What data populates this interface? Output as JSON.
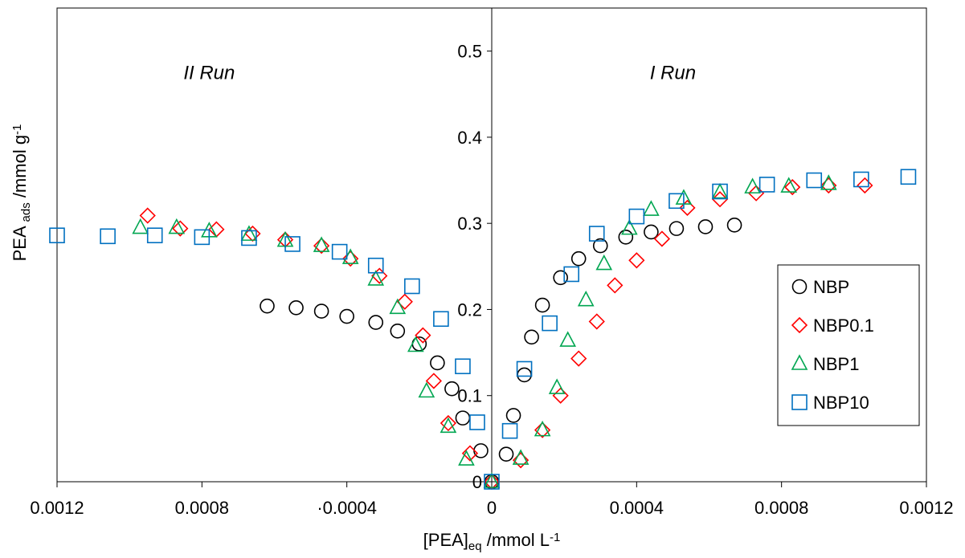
{
  "chart_data": {
    "type": "scatter",
    "xlabel": {
      "main": "[PEA]",
      "sub": "eq",
      "rest": " /mmol L",
      "sup": "-1"
    },
    "ylabel": {
      "main": "PEA ",
      "sub": "ads",
      "rest": " /mmol g",
      "sup": "-1"
    },
    "xlim": [
      -0.0012,
      0.0012
    ],
    "ylim": [
      0,
      0.55
    ],
    "x_ticks": [
      -0.0012,
      -0.0008,
      -0.0004,
      0,
      0.0004,
      0.0008,
      0.0012
    ],
    "x_tick_labels": [
      "0.0012",
      "0.0008",
      "·0.0004",
      "0",
      "0.0004",
      "0.0008",
      "0.0012"
    ],
    "y_ticks": [
      0,
      0.1,
      0.2,
      0.3,
      0.4,
      0.5
    ],
    "y_tick_labels": [
      "0",
      "0.1",
      "0.2",
      "0.3",
      "0.4",
      "0.5"
    ],
    "annotations": [
      {
        "text": "II Run",
        "x": -0.00078,
        "y": 0.475
      },
      {
        "text": "I Run",
        "x": 0.0005,
        "y": 0.475
      }
    ],
    "legend_position": "right",
    "series": [
      {
        "name": "NBP",
        "marker": "circle",
        "color": "#000000",
        "points": [
          [
            -0.00062,
            0.204
          ],
          [
            -0.00054,
            0.202
          ],
          [
            -0.00047,
            0.198
          ],
          [
            -0.0004,
            0.192
          ],
          [
            -0.00032,
            0.185
          ],
          [
            -0.00026,
            0.175
          ],
          [
            -0.0002,
            0.16
          ],
          [
            -0.00015,
            0.138
          ],
          [
            -0.00011,
            0.108
          ],
          [
            -8e-05,
            0.074
          ],
          [
            -3e-05,
            0.036
          ],
          [
            0.0,
            0.0
          ],
          [
            4e-05,
            0.032
          ],
          [
            6e-05,
            0.077
          ],
          [
            9e-05,
            0.124
          ],
          [
            0.00011,
            0.168
          ],
          [
            0.00014,
            0.205
          ],
          [
            0.00019,
            0.237
          ],
          [
            0.00024,
            0.259
          ],
          [
            0.0003,
            0.274
          ],
          [
            0.00037,
            0.284
          ],
          [
            0.00044,
            0.29
          ],
          [
            0.00051,
            0.294
          ],
          [
            0.00059,
            0.296
          ],
          [
            0.00067,
            0.298
          ]
        ]
      },
      {
        "name": "NBP0.1",
        "marker": "diamond",
        "color": "#ff0000",
        "points": [
          [
            -0.00095,
            0.309
          ],
          [
            -0.00086,
            0.294
          ],
          [
            -0.00076,
            0.293
          ],
          [
            -0.00066,
            0.288
          ],
          [
            -0.00057,
            0.281
          ],
          [
            -0.00047,
            0.274
          ],
          [
            -0.00039,
            0.259
          ],
          [
            -0.00031,
            0.239
          ],
          [
            -0.00024,
            0.209
          ],
          [
            -0.00019,
            0.17
          ],
          [
            -0.00016,
            0.117
          ],
          [
            -0.00012,
            0.068
          ],
          [
            -6e-05,
            0.033
          ],
          [
            0.0,
            0.0
          ],
          [
            8e-05,
            0.025
          ],
          [
            0.00014,
            0.06
          ],
          [
            0.00019,
            0.1
          ],
          [
            0.00024,
            0.143
          ],
          [
            0.00029,
            0.186
          ],
          [
            0.00034,
            0.228
          ],
          [
            0.0004,
            0.257
          ],
          [
            0.00047,
            0.282
          ],
          [
            0.00054,
            0.318
          ],
          [
            0.00063,
            0.328
          ],
          [
            0.00073,
            0.335
          ],
          [
            0.00083,
            0.342
          ],
          [
            0.00093,
            0.344
          ],
          [
            0.00103,
            0.344
          ]
        ]
      },
      {
        "name": "NBP1",
        "marker": "triangle",
        "color": "#00a651",
        "points": [
          [
            -0.00097,
            0.295
          ],
          [
            -0.00087,
            0.295
          ],
          [
            -0.00078,
            0.291
          ],
          [
            -0.00067,
            0.287
          ],
          [
            -0.00057,
            0.28
          ],
          [
            -0.00047,
            0.274
          ],
          [
            -0.00039,
            0.26
          ],
          [
            -0.00032,
            0.235
          ],
          [
            -0.00026,
            0.202
          ],
          [
            -0.00021,
            0.158
          ],
          [
            -0.00018,
            0.105
          ],
          [
            -0.00012,
            0.064
          ],
          [
            -7e-05,
            0.026
          ],
          [
            0.0,
            0.0
          ],
          [
            8e-05,
            0.027
          ],
          [
            0.00014,
            0.06
          ],
          [
            0.00018,
            0.109
          ],
          [
            0.00021,
            0.164
          ],
          [
            0.00026,
            0.211
          ],
          [
            0.00031,
            0.253
          ],
          [
            0.00038,
            0.294
          ],
          [
            0.00044,
            0.316
          ],
          [
            0.00053,
            0.329
          ],
          [
            0.00063,
            0.336
          ],
          [
            0.00072,
            0.342
          ],
          [
            0.00082,
            0.343
          ],
          [
            0.00093,
            0.346
          ]
        ]
      },
      {
        "name": "NBP10",
        "marker": "square",
        "color": "#0070c0",
        "points": [
          [
            -0.0012,
            0.286
          ],
          [
            -0.00106,
            0.285
          ],
          [
            -0.00093,
            0.286
          ],
          [
            -0.0008,
            0.284
          ],
          [
            -0.00067,
            0.283
          ],
          [
            -0.00055,
            0.276
          ],
          [
            -0.00042,
            0.267
          ],
          [
            -0.00032,
            0.251
          ],
          [
            -0.00022,
            0.227
          ],
          [
            -0.00014,
            0.189
          ],
          [
            -8e-05,
            0.134
          ],
          [
            -4e-05,
            0.069
          ],
          [
            0.0,
            0.0
          ],
          [
            5e-05,
            0.059
          ],
          [
            9e-05,
            0.131
          ],
          [
            0.00016,
            0.184
          ],
          [
            0.00022,
            0.241
          ],
          [
            0.00029,
            0.288
          ],
          [
            0.0004,
            0.308
          ],
          [
            0.00051,
            0.326
          ],
          [
            0.00063,
            0.337
          ],
          [
            0.00076,
            0.345
          ],
          [
            0.00089,
            0.35
          ],
          [
            0.00102,
            0.351
          ],
          [
            0.00115,
            0.354
          ]
        ]
      }
    ]
  }
}
